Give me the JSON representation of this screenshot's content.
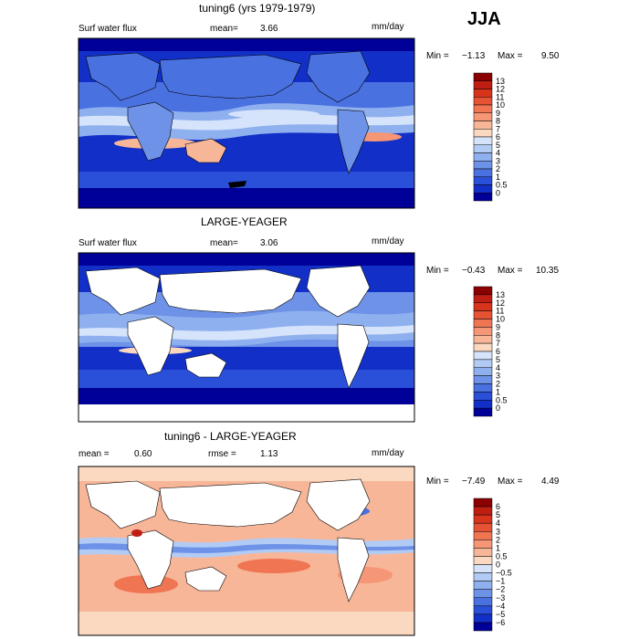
{
  "season": "JJA",
  "panels": [
    {
      "title": "tuning6 (yrs 1979-1979)",
      "field_label": "Surf water flux",
      "mean_label": "mean=",
      "mean_value": "3.66",
      "units": "mm/day",
      "min_label": "Min =",
      "min_value": "−1.13",
      "max_label": "Max =",
      "max_value": "9.50",
      "colorbar_labels": [
        "13",
        "12",
        "11",
        "10",
        "9",
        "8",
        "7",
        "6",
        "5",
        "4",
        "3",
        "2",
        "1",
        "0.5",
        "0"
      ],
      "colorbar_colors": [
        "#8b0000",
        "#bf1e12",
        "#d8341c",
        "#e55234",
        "#ef7553",
        "#f59676",
        "#f8b698",
        "#fbd8c0",
        "#d6e4fb",
        "#b2cbf5",
        "#8fb0ee",
        "#6d92e8",
        "#4a71e0",
        "#2a4fd8",
        "#1230c8",
        "#000099"
      ]
    },
    {
      "title": "LARGE-YEAGER",
      "field_label": "Surf water flux",
      "mean_label": "mean=",
      "mean_value": "3.06",
      "units": "mm/day",
      "min_label": "Min =",
      "min_value": "−0.43",
      "max_label": "Max =",
      "max_value": "10.35",
      "colorbar_labels": [
        "13",
        "12",
        "11",
        "10",
        "9",
        "8",
        "7",
        "6",
        "5",
        "4",
        "3",
        "2",
        "1",
        "0.5",
        "0"
      ],
      "colorbar_colors": [
        "#8b0000",
        "#bf1e12",
        "#d8341c",
        "#e55234",
        "#ef7553",
        "#f59676",
        "#f8b698",
        "#fbd8c0",
        "#d6e4fb",
        "#b2cbf5",
        "#8fb0ee",
        "#6d92e8",
        "#4a71e0",
        "#2a4fd8",
        "#1230c8",
        "#000099"
      ]
    },
    {
      "title": "tuning6 - LARGE-YEAGER",
      "field_label": "mean =",
      "mean_label": "",
      "mean_value": "0.60",
      "rmse_label": "rmse =",
      "rmse_value": "1.13",
      "units": "mm/day",
      "min_label": "Min =",
      "min_value": "−7.49",
      "max_label": "Max =",
      "max_value": "4.49",
      "colorbar_labels": [
        "6",
        "5",
        "4",
        "3",
        "2",
        "1",
        "0.5",
        "0",
        "−0.5",
        "−1",
        "−2",
        "−3",
        "−4",
        "−5",
        "−6"
      ],
      "colorbar_colors": [
        "#8b0000",
        "#bf1e12",
        "#d8341c",
        "#e55234",
        "#ef7553",
        "#f59676",
        "#f8b698",
        "#fbd8c0",
        "#d6e4fb",
        "#b2cbf5",
        "#8fb0ee",
        "#6d92e8",
        "#4a71e0",
        "#2a4fd8",
        "#1230c8",
        "#000099"
      ]
    }
  ]
}
